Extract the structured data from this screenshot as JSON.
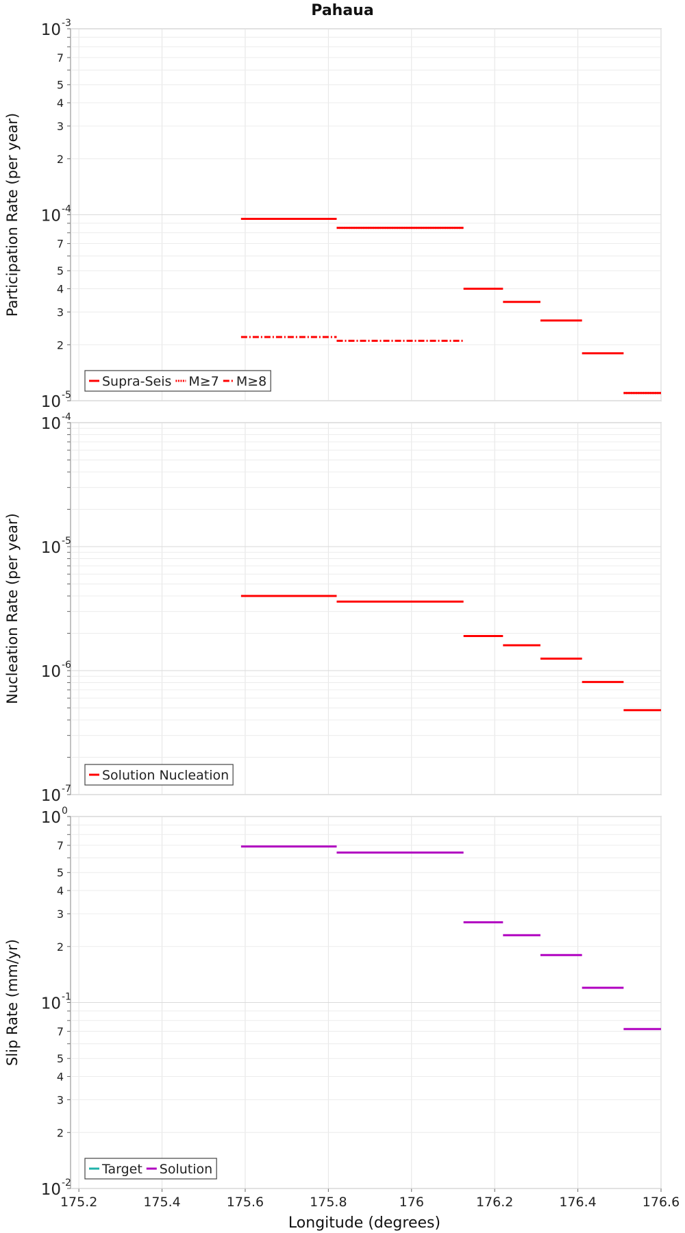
{
  "chart_data": {
    "title": "Pahaua",
    "xlabel": "Longitude (degrees)",
    "x_ticks": [
      "175.2",
      "175.4",
      "175.6",
      "175.8",
      "176",
      "176.2",
      "176.4",
      "176.6"
    ],
    "xlim": [
      175.18,
      176.6
    ],
    "panels": [
      {
        "type": "line",
        "ylabel": "Participation Rate (per year)",
        "yscale": "log",
        "ylim": [
          1e-05,
          0.001
        ],
        "legend": "bottom-left",
        "legend_entries": [
          {
            "name": "Supra-Seis",
            "color": "#ff0000",
            "style": "solid"
          },
          {
            "name": "M≥7",
            "color": "#ff0000",
            "style": "dotted"
          },
          {
            "name": "M≥8",
            "color": "#ff0000",
            "style": "dashdot"
          }
        ],
        "series": [
          {
            "name": "Supra-Seis",
            "color": "#ff0000",
            "style": "solid",
            "segments": [
              [
                175.59,
                175.82,
                9.5e-05
              ],
              [
                175.82,
                176.125,
                8.5e-05
              ],
              [
                176.125,
                176.22,
                4e-05
              ],
              [
                176.22,
                176.31,
                3.4e-05
              ],
              [
                176.31,
                176.41,
                2.7e-05
              ],
              [
                176.41,
                176.51,
                1.8e-05
              ],
              [
                176.51,
                176.6,
                1.1e-05
              ]
            ]
          },
          {
            "name": "M≥7",
            "color": "#ff0000",
            "style": "dotted",
            "segments": [
              [
                175.59,
                175.82,
                9.5e-05
              ],
              [
                175.82,
                176.125,
                8.5e-05
              ],
              [
                176.51,
                176.6,
                1.1e-05
              ]
            ]
          },
          {
            "name": "M≥8",
            "color": "#ff0000",
            "style": "dashdot",
            "segments": [
              [
                175.59,
                175.82,
                2.2e-05
              ],
              [
                175.82,
                176.125,
                2.1e-05
              ]
            ]
          }
        ]
      },
      {
        "type": "line",
        "ylabel": "Nucleation Rate (per year)",
        "yscale": "log",
        "ylim": [
          1e-07,
          0.0001
        ],
        "legend": "bottom-left",
        "legend_entries": [
          {
            "name": "Solution Nucleation",
            "color": "#ff0000",
            "style": "solid"
          }
        ],
        "series": [
          {
            "name": "Solution Nucleation",
            "color": "#ff0000",
            "style": "solid",
            "segments": [
              [
                175.59,
                175.82,
                4e-06
              ],
              [
                175.82,
                176.125,
                3.6e-06
              ],
              [
                176.125,
                176.22,
                1.9e-06
              ],
              [
                176.22,
                176.31,
                1.6e-06
              ],
              [
                176.31,
                176.41,
                1.25e-06
              ],
              [
                176.41,
                176.51,
                8.1e-07
              ],
              [
                176.51,
                176.6,
                4.8e-07
              ]
            ]
          }
        ]
      },
      {
        "type": "line",
        "ylabel": "Slip Rate (mm/yr)",
        "yscale": "log",
        "ylim": [
          0.01,
          1
        ],
        "legend": "bottom-left",
        "legend_entries": [
          {
            "name": "Target",
            "color": "#20b2aa",
            "style": "solid"
          },
          {
            "name": "Solution",
            "color": "#b000c0",
            "style": "solid"
          }
        ],
        "series": [
          {
            "name": "Solution",
            "color": "#b000c0",
            "style": "solid",
            "segments": [
              [
                175.59,
                175.82,
                0.69
              ],
              [
                175.82,
                176.125,
                0.64
              ],
              [
                176.125,
                176.22,
                0.27
              ],
              [
                176.22,
                176.31,
                0.23
              ],
              [
                176.31,
                176.41,
                0.18
              ],
              [
                176.41,
                176.51,
                0.12
              ],
              [
                176.51,
                176.6,
                0.072
              ]
            ]
          }
        ]
      }
    ]
  }
}
